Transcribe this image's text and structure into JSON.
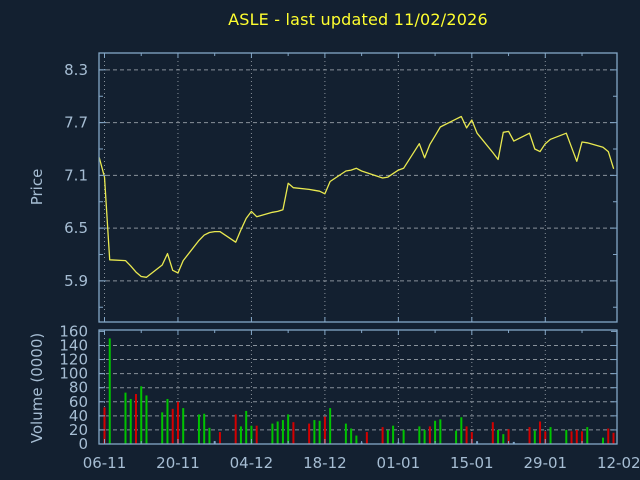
{
  "title": "ASLE - last updated 11/02/2026",
  "colors": {
    "background": "#132030",
    "axis": "#84a7c7",
    "tick_text": "#a6bdd3",
    "grid": "#a6aeb5",
    "title_text": "#ffff2f",
    "price_line": "#e9e950",
    "volume_up": "#00c400",
    "volume_down": "#d40000",
    "volume_neutral": "#7fa6c9"
  },
  "x_axis": {
    "tick_labels": [
      {
        "label": "06-11",
        "day_offset": 1
      },
      {
        "label": "20-11",
        "day_offset": 15
      },
      {
        "label": "04-12",
        "day_offset": 29
      },
      {
        "label": "18-12",
        "day_offset": 43
      },
      {
        "label": "01-01",
        "day_offset": 57
      },
      {
        "label": "15-01",
        "day_offset": 71
      },
      {
        "label": "29-01",
        "day_offset": 85
      },
      {
        "label": "12-02",
        "day_offset": 99
      }
    ]
  },
  "chart_data": [
    {
      "type": "line",
      "name": "price",
      "title": "ASLE - last updated 11/02/2026",
      "ylabel": "Price",
      "yticks": [
        5.9,
        6.5,
        7.1,
        7.7,
        8.3
      ],
      "minor_yticks": [
        5.6,
        6.2,
        6.8,
        7.4,
        8.0
      ],
      "ylim": [
        5.432,
        8.492
      ],
      "grid": true,
      "line_color": "#e9e950",
      "dates": [
        "05-11",
        "06-11",
        "07-11",
        "10-11",
        "11-11",
        "12-11",
        "13-11",
        "14-11",
        "17-11",
        "18-11",
        "19-11",
        "20-11",
        "21-11",
        "24-11",
        "25-11",
        "26-11",
        "27-11",
        "28-11",
        "01-12",
        "02-12",
        "03-12",
        "04-12",
        "05-12",
        "08-12",
        "09-12",
        "10-12",
        "11-12",
        "12-12",
        "15-12",
        "16-12",
        "17-12",
        "18-12",
        "19-12",
        "22-12",
        "23-12",
        "24-12",
        "25-12",
        "26-12",
        "29-12",
        "30-12",
        "31-12",
        "01-01",
        "02-01",
        "05-01",
        "06-01",
        "07-01",
        "08-01",
        "09-01",
        "12-01",
        "13-01",
        "14-01",
        "15-01",
        "16-01",
        "19-01",
        "20-01",
        "21-01",
        "22-01",
        "23-01",
        "26-01",
        "27-01",
        "28-01",
        "29-01",
        "30-01",
        "02-02",
        "03-02",
        "04-02",
        "05-02",
        "06-02",
        "09-02",
        "10-02",
        "11-02"
      ],
      "day_offsets": [
        0,
        1,
        2,
        5,
        6,
        7,
        8,
        9,
        12,
        13,
        14,
        15,
        16,
        19,
        20,
        21,
        22,
        23,
        26,
        27,
        28,
        29,
        30,
        33,
        34,
        35,
        36,
        37,
        40,
        41,
        42,
        43,
        44,
        47,
        48,
        49,
        50,
        51,
        54,
        55,
        56,
        57,
        58,
        61,
        62,
        63,
        64,
        65,
        68,
        69,
        70,
        71,
        72,
        75,
        76,
        77,
        78,
        79,
        82,
        83,
        84,
        85,
        86,
        89,
        90,
        91,
        92,
        93,
        96,
        97,
        98
      ],
      "values": [
        7.3,
        7.08,
        6.14,
        6.13,
        6.07,
        6.0,
        5.95,
        5.94,
        6.08,
        6.21,
        6.02,
        5.99,
        6.13,
        6.36,
        6.42,
        6.45,
        6.46,
        6.46,
        6.34,
        6.48,
        6.61,
        6.69,
        6.63,
        6.68,
        6.69,
        6.71,
        7.01,
        6.96,
        6.94,
        6.93,
        6.92,
        6.89,
        7.03,
        7.15,
        7.16,
        7.18,
        7.15,
        7.13,
        7.07,
        7.08,
        7.12,
        7.16,
        7.18,
        7.46,
        7.3,
        7.45,
        7.55,
        7.65,
        7.74,
        7.77,
        7.64,
        7.73,
        7.58,
        7.36,
        7.28,
        7.59,
        7.6,
        7.49,
        7.58,
        7.4,
        7.37,
        7.46,
        7.51,
        7.58,
        7.42,
        7.26,
        7.48,
        7.47,
        7.42,
        7.37,
        7.18
      ]
    },
    {
      "type": "bar",
      "name": "volume",
      "ylabel": "Volume (0000)",
      "yticks": [
        0,
        20,
        40,
        60,
        80,
        100,
        120,
        140,
        160
      ],
      "ylim": [
        0,
        162
      ],
      "grid": true,
      "up_color": "#00c400",
      "down_color": "#d40000",
      "neutral_color": "#7fa6c9",
      "values": [
        0,
        52,
        150,
        73,
        64,
        71,
        82,
        69,
        45,
        64,
        50,
        60,
        51,
        42,
        43,
        23,
        4,
        17,
        42,
        25,
        47,
        26,
        26,
        29,
        32,
        34,
        42,
        31,
        29,
        34,
        33,
        39,
        51,
        29,
        22,
        12,
        2,
        17,
        24,
        20,
        26,
        2,
        20,
        25,
        20,
        25,
        33,
        35,
        19,
        38,
        25,
        17,
        4,
        31,
        20,
        14,
        21,
        3,
        24,
        19,
        32,
        18,
        24,
        20,
        18,
        20,
        18,
        24,
        9,
        22,
        16
      ],
      "directions": [
        "none",
        "down",
        "up",
        "up",
        "up",
        "down",
        "up",
        "up",
        "up",
        "up",
        "down",
        "down",
        "up",
        "up",
        "up",
        "up",
        "neutral",
        "down",
        "down",
        "up",
        "up",
        "up",
        "down",
        "up",
        "up",
        "up",
        "up",
        "down",
        "down",
        "up",
        "up",
        "down",
        "up",
        "up",
        "up",
        "up",
        "neutral",
        "down",
        "down",
        "up",
        "up",
        "neutral",
        "up",
        "up",
        "up",
        "down",
        "up",
        "up",
        "up",
        "up",
        "down",
        "down",
        "neutral",
        "down",
        "up",
        "up",
        "down",
        "neutral",
        "down",
        "up",
        "down",
        "down",
        "up",
        "up",
        "down",
        "down",
        "down",
        "up",
        "up",
        "down",
        "down"
      ]
    }
  ]
}
